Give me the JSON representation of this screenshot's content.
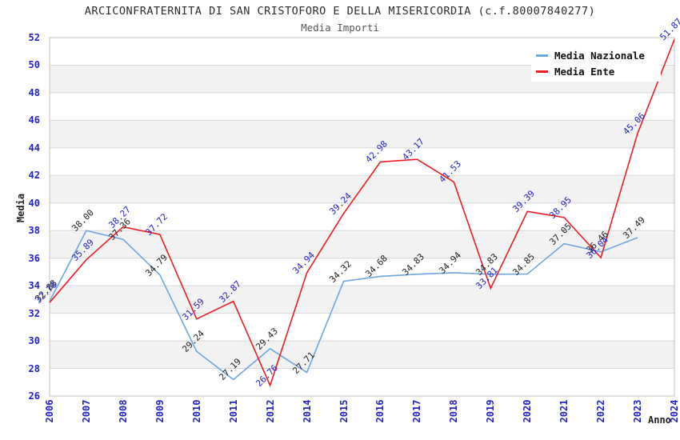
{
  "title": "ARCICONFRATERNITA DI SAN CRISTOFORO E DELLA MISERICORDIA (c.f.80007840277)",
  "subtitle": "Media Importi",
  "legend": {
    "items": [
      {
        "label": "Media Nazionale",
        "color": "#6ea6e0"
      },
      {
        "label": "Media Ente",
        "color": "#ec1c24"
      }
    ]
  },
  "colors": {
    "nazionale_line": "#6ea6e0",
    "ente_line": "#ec1c24",
    "tick_label_blue": "#2222cc",
    "data_label_black": "#222222",
    "data_label_blue": "#2222cc",
    "band_gray": "#f2f2f2",
    "grid": "#d8d8d8",
    "plot_border": "#c0c0c0"
  },
  "chart_data": {
    "type": "line",
    "title": "ARCICONFRATERNITA DI SAN CRISTOFORO E DELLA MISERICORDIA (c.f.80007840277)",
    "subtitle": "Media Importi",
    "xlabel": "Anno",
    "ylabel": "Media",
    "ylim": [
      26,
      52
    ],
    "ytick_step": 2,
    "grid": "horizontal",
    "banded_background": true,
    "legend_position": "top-right",
    "categories": [
      "2006",
      "2007",
      "2008",
      "2009",
      "2010",
      "2011",
      "2012",
      "2014",
      "2015",
      "2016",
      "2017",
      "2018",
      "2019",
      "2020",
      "2021",
      "2022",
      "2023",
      "2024"
    ],
    "series": [
      {
        "name": "Media Nazionale",
        "color": "#6ea6e0",
        "label_color": "#222222",
        "values": [
          32.88,
          38.0,
          37.36,
          34.79,
          29.24,
          27.19,
          29.43,
          27.71,
          34.32,
          34.68,
          34.83,
          34.94,
          34.83,
          34.85,
          37.05,
          36.46,
          37.49,
          null
        ]
      },
      {
        "name": "Media Ente",
        "color": "#ec1c24",
        "label_color": "#2222cc",
        "values": [
          32.78,
          35.89,
          38.27,
          37.72,
          31.59,
          32.87,
          26.76,
          34.94,
          39.24,
          42.98,
          43.17,
          41.53,
          33.81,
          39.39,
          38.95,
          36.04,
          45.06,
          51.87
        ]
      }
    ]
  }
}
